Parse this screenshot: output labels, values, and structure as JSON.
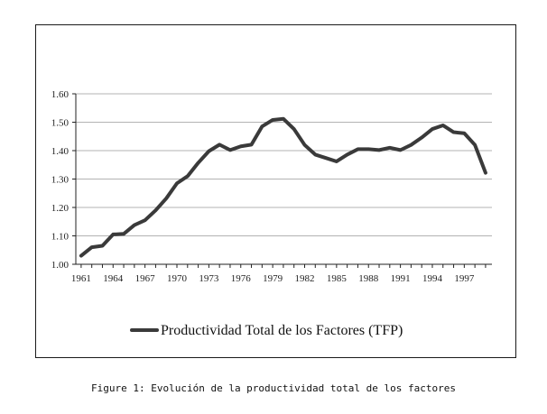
{
  "chart_data": {
    "type": "line",
    "title": "",
    "xlabel": "",
    "ylabel": "",
    "ylim": [
      1.0,
      1.6
    ],
    "y_ticks": [
      "1.00",
      "1.10",
      "1.20",
      "1.30",
      "1.40",
      "1.50",
      "1.60"
    ],
    "x_ticks": [
      "1961",
      "1964",
      "1967",
      "1970",
      "1973",
      "1976",
      "1979",
      "1982",
      "1985",
      "1988",
      "1991",
      "1994",
      "1997"
    ],
    "grid": true,
    "legend_position": "bottom",
    "series": [
      {
        "name": "Productividad Total de los Factores (TFP)",
        "color": "#3a3a3a",
        "x": [
          1961,
          1962,
          1963,
          1964,
          1965,
          1966,
          1967,
          1968,
          1969,
          1970,
          1971,
          1972,
          1973,
          1974,
          1975,
          1976,
          1977,
          1978,
          1979,
          1980,
          1981,
          1982,
          1983,
          1984,
          1985,
          1986,
          1987,
          1988,
          1989,
          1990,
          1991,
          1992,
          1993,
          1994,
          1995,
          1996,
          1997,
          1998,
          1999
        ],
        "values": [
          1.03,
          1.06,
          1.065,
          1.105,
          1.107,
          1.138,
          1.155,
          1.19,
          1.232,
          1.285,
          1.31,
          1.357,
          1.398,
          1.421,
          1.402,
          1.415,
          1.421,
          1.485,
          1.508,
          1.512,
          1.476,
          1.42,
          1.386,
          1.374,
          1.362,
          1.386,
          1.405,
          1.405,
          1.402,
          1.41,
          1.402,
          1.42,
          1.446,
          1.476,
          1.489,
          1.465,
          1.461,
          1.42,
          1.322
        ]
      }
    ]
  },
  "caption": "Figure 1: Evolución de la productividad total de los factores"
}
